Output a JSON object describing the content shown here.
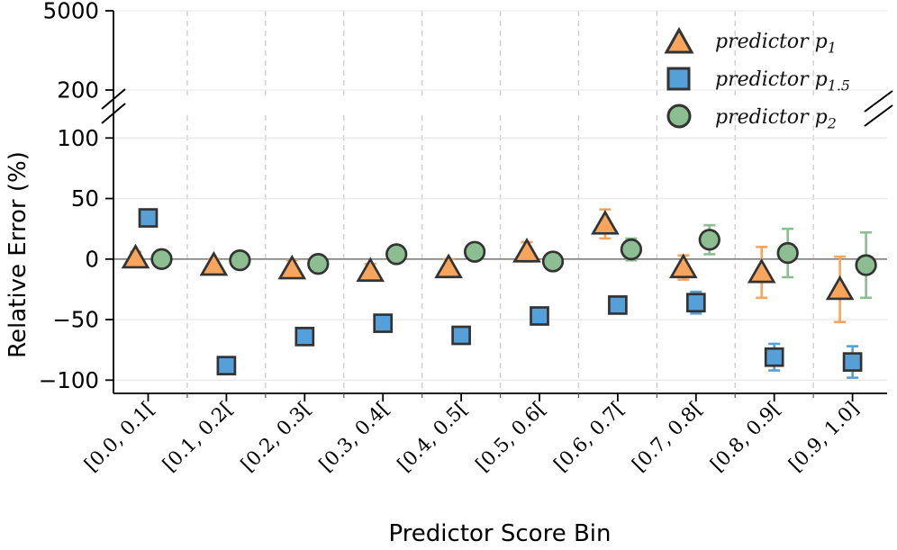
{
  "chart_data": {
    "type": "scatter",
    "title": "",
    "xlabel": "Predictor Score Bin",
    "ylabel": "Relative Error (%)",
    "x_categories": [
      "[0.0, 0.1[",
      "[0.1, 0.2[",
      "[0.2, 0.3[",
      "[0.3, 0.4[",
      "[0.4, 0.5[",
      "[0.5, 0.6[",
      "[0.6, 0.7[",
      "[0.7, 0.8[",
      "[0.8, 0.9[",
      "[0.9, 1.0]"
    ],
    "y_axis": {
      "main_ticks": [
        100,
        50,
        0,
        -50,
        -100
      ],
      "upper_ticks": [
        5000,
        200
      ],
      "main_range": [
        -110,
        120
      ],
      "upper_range": [
        200,
        5000
      ],
      "broken_axis": true,
      "zero_line": true,
      "horizontal_grid": true,
      "vertical_grid_dashed": true
    },
    "series": [
      {
        "name": "predictor p1",
        "legend_base": "predictor p",
        "legend_sub": "1",
        "marker": "triangle",
        "color": "#F7A45C",
        "edge_color": "#333333",
        "values": [
          1,
          -5,
          -8,
          -10,
          -7,
          6,
          29,
          -7,
          -11,
          -25
        ],
        "errors": [
          5,
          5,
          7,
          6,
          7,
          8,
          12,
          10,
          21,
          27
        ]
      },
      {
        "name": "predictor p1.5",
        "legend_base": "predictor p",
        "legend_sub": "1.5",
        "marker": "square",
        "color": "#55A0D9",
        "edge_color": "#333333",
        "values": [
          34,
          -88,
          -64,
          -53,
          -63,
          -47,
          -38,
          -36,
          -81,
          -85
        ],
        "errors": [
          2,
          2,
          2,
          2,
          2,
          2,
          2,
          9,
          11,
          13
        ]
      },
      {
        "name": "predictor p2",
        "legend_base": "predictor p",
        "legend_sub": "2",
        "marker": "circle",
        "color": "#8CBE92",
        "edge_color": "#333333",
        "values": [
          0,
          -1,
          -4,
          4,
          6,
          -2,
          8,
          16,
          5,
          -5
        ],
        "errors": [
          2,
          2,
          2,
          3,
          3,
          4,
          9,
          12,
          20,
          27
        ]
      }
    ],
    "legend": {
      "position": "upper-right"
    },
    "colors": {
      "zero_line": "#7f7f7f",
      "h_grid": "#e9e9e9",
      "v_grid_dashed": "#cbcbcb",
      "spine": "#000000"
    }
  }
}
